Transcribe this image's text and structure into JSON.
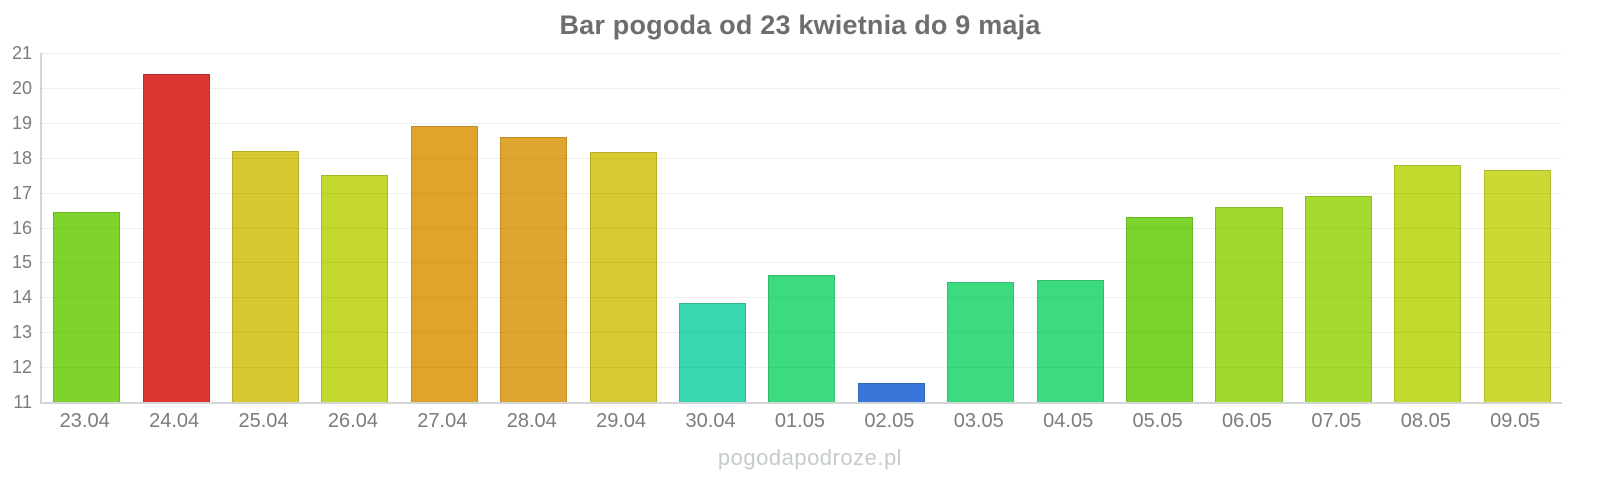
{
  "watermark": "pogodapodroze.pl",
  "colors": {
    "title_text": "#6E6E6E",
    "axis_label_text": "#7A7C7E",
    "watermark_text": "#C6CBCD",
    "axis_line": "#D3D6D7",
    "gridline": "#E4E4E4",
    "background": "#FFFFFF"
  },
  "chart_data": {
    "type": "bar",
    "title": "Bar pogoda od 23 kwietnia do 9 maja",
    "categories": [
      "23.04",
      "24.04",
      "25.04",
      "26.04",
      "27.04",
      "28.04",
      "29.04",
      "30.04",
      "01.05",
      "02.05",
      "03.05",
      "04.05",
      "05.05",
      "06.05",
      "07.05",
      "08.05",
      "09.05"
    ],
    "values": [
      16.45,
      20.4,
      18.2,
      17.5,
      18.9,
      18.6,
      18.15,
      13.85,
      14.65,
      11.55,
      14.45,
      14.5,
      16.3,
      16.6,
      16.9,
      17.8,
      17.65
    ],
    "bar_colors": [
      "#7ED32C",
      "#DB3631",
      "#D7C82F",
      "#C3D72E",
      "#E0A42C",
      "#DFA62F",
      "#D7C930",
      "#37D7B1",
      "#3CDB80",
      "#3A76D9",
      "#3CDB80",
      "#3CDB80",
      "#7DD32E",
      "#9FD930",
      "#A5DB2F",
      "#C2DA2E",
      "#CCD935"
    ],
    "xlabel": "",
    "ylabel": "",
    "ylim": [
      11,
      21
    ],
    "yticks": [
      11,
      12,
      13,
      14,
      15,
      16,
      17,
      18,
      19,
      20,
      21
    ],
    "grid": true,
    "legend": false
  }
}
